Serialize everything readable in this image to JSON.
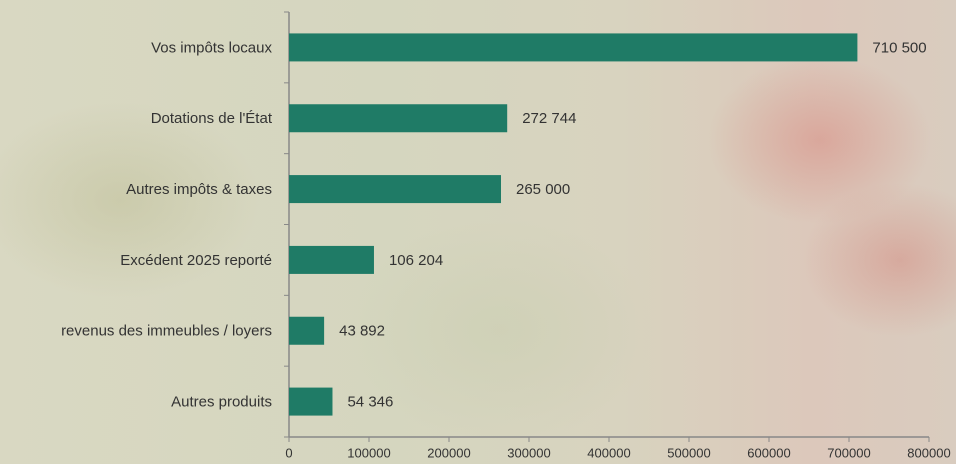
{
  "chart_data": {
    "type": "bar",
    "orientation": "horizontal",
    "categories": [
      "Vos impôts locaux",
      "Dotations de l'État",
      "Autres impôts & taxes",
      "Excédent 2025 reporté",
      "revenus des immeubles / loyers",
      "Autres produits"
    ],
    "values": [
      710500,
      272744,
      265000,
      106204,
      43892,
      54346
    ],
    "value_labels": [
      "710 500",
      "272 744",
      "265 000",
      "106 204",
      "43 892",
      "54 346"
    ],
    "color": "#1f7b66",
    "xlim": [
      0,
      800000
    ],
    "xticks": [
      0,
      100000,
      200000,
      300000,
      400000,
      500000,
      600000,
      700000,
      800000
    ]
  }
}
